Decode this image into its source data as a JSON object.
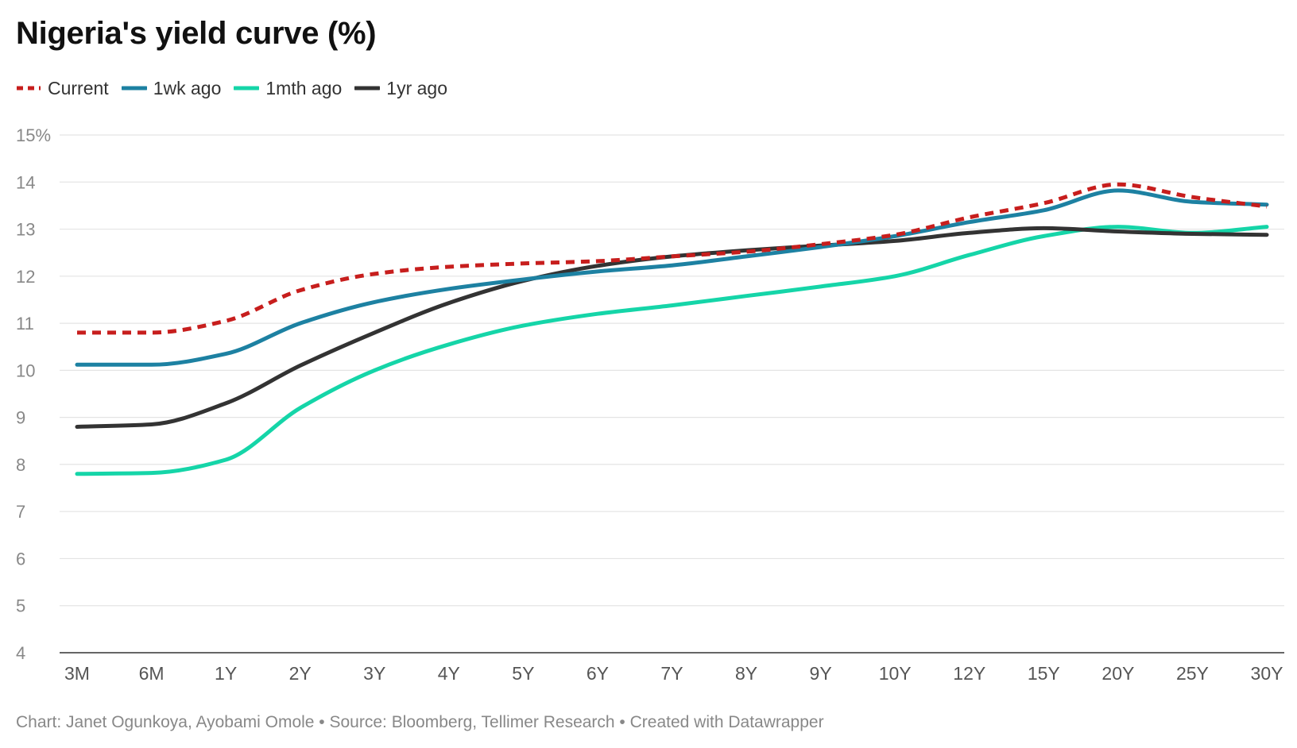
{
  "chart_data": {
    "type": "line",
    "title": "Nigeria's yield curve (%)",
    "xlabel": "",
    "ylabel": "",
    "categories": [
      "3M",
      "6M",
      "1Y",
      "2Y",
      "3Y",
      "4Y",
      "5Y",
      "6Y",
      "7Y",
      "8Y",
      "9Y",
      "10Y",
      "12Y",
      "15Y",
      "20Y",
      "25Y",
      "30Y"
    ],
    "y_ticks": [
      "15%",
      "14",
      "13",
      "12",
      "11",
      "10",
      "9",
      "8",
      "7",
      "6",
      "5",
      "4"
    ],
    "y_tick_values": [
      15,
      14,
      13,
      12,
      11,
      10,
      9,
      8,
      7,
      6,
      5,
      4
    ],
    "ylim": [
      4,
      15
    ],
    "grid": true,
    "legend_position": "top-left",
    "series": [
      {
        "name": "Current",
        "color": "#c71e1d",
        "dashed": true,
        "values": [
          10.8,
          10.8,
          11.05,
          11.7,
          12.05,
          12.2,
          12.27,
          12.32,
          12.42,
          12.52,
          12.68,
          12.88,
          13.25,
          13.55,
          13.95,
          13.68,
          13.48
        ]
      },
      {
        "name": "1wk ago",
        "color": "#1d81a2",
        "dashed": false,
        "values": [
          10.12,
          10.12,
          10.35,
          11.0,
          11.45,
          11.73,
          11.93,
          12.1,
          12.23,
          12.42,
          12.62,
          12.85,
          13.15,
          13.4,
          13.82,
          13.58,
          13.52
        ]
      },
      {
        "name": "1mth ago",
        "color": "#15d5a8",
        "dashed": false,
        "values": [
          7.8,
          7.82,
          8.1,
          9.2,
          10.0,
          10.55,
          10.95,
          11.2,
          11.38,
          11.58,
          11.78,
          12.0,
          12.45,
          12.85,
          13.05,
          12.92,
          13.05
        ]
      },
      {
        "name": "1yr ago",
        "color": "#333333",
        "dashed": false,
        "values": [
          8.8,
          8.85,
          9.3,
          10.1,
          10.8,
          11.43,
          11.9,
          12.22,
          12.42,
          12.55,
          12.65,
          12.75,
          12.92,
          13.02,
          12.95,
          12.9,
          12.88
        ]
      }
    ]
  },
  "footer": {
    "credit": "Chart: Janet Ogunkoya, Ayobami Omole • Source: Bloomberg, Tellimer Research • Created with Datawrapper"
  }
}
